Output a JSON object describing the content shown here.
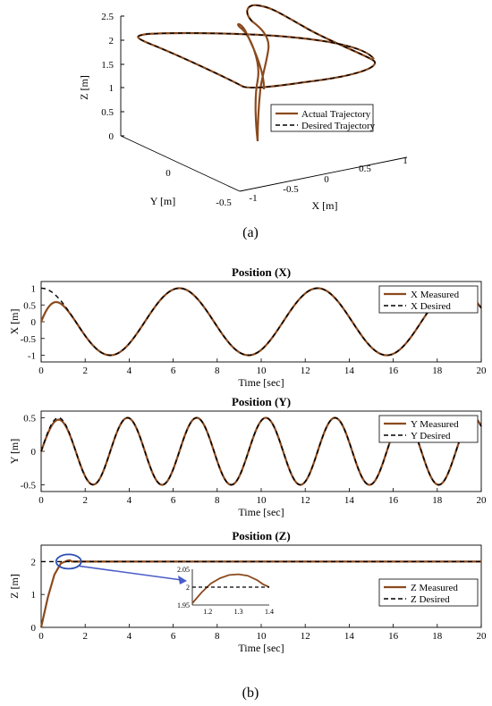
{
  "figure": {
    "caption_a": "(a)",
    "caption_b": "(b)"
  },
  "colors": {
    "measured": "#8b4a1e",
    "desired": "#000000",
    "zoom_ellipse": "#2b4db3",
    "arrow": "#4a5cc9"
  },
  "panel_a": {
    "zlabel": "Z [m]",
    "ylabel": "Y [m]",
    "xlabel": "X [m]",
    "z_ticks": [
      "2.5",
      "2",
      "1.5",
      "1",
      "0.5",
      "0"
    ],
    "y_ticks": [
      "0",
      "-0.5"
    ],
    "x_ticks": [
      "1",
      "0.5",
      "0",
      "-0.5",
      "-1"
    ],
    "legend": [
      "Actual Trajectory",
      "Desired Trajectory"
    ]
  },
  "chart_data": [
    {
      "type": "line",
      "title": "Position (X)",
      "xlabel": "Time [sec]",
      "ylabel": "X [m]",
      "xlim": [
        0,
        20
      ],
      "ylim": [
        -1.2,
        1.2
      ],
      "x_ticks": [
        "0",
        "2",
        "4",
        "6",
        "8",
        "10",
        "12",
        "14",
        "16",
        "18",
        "20"
      ],
      "y_ticks": [
        "1",
        "0.5",
        "0",
        "-0.5",
        "-1"
      ],
      "legend": [
        "X Measured",
        "X Desired"
      ],
      "legend_position": "top-right",
      "series": [
        {
          "name": "X Measured",
          "x": [
            0,
            0.3,
            0.6,
            1.0,
            1.5,
            2.0,
            3.14,
            4.71,
            6.28,
            7.85,
            9.42,
            11.0,
            12.57,
            14.14,
            15.71,
            17.28,
            18.85,
            20
          ],
          "y": [
            0,
            0.3,
            0.45,
            0.4,
            0.12,
            -0.35,
            -1,
            0,
            1,
            0,
            -1,
            0,
            1,
            0,
            -1,
            0,
            1,
            0.41
          ]
        },
        {
          "name": "X Desired",
          "x": [
            0,
            1.57,
            3.14,
            4.71,
            6.28,
            7.85,
            9.42,
            11.0,
            12.57,
            14.14,
            15.71,
            17.28,
            18.85,
            20
          ],
          "y": [
            1,
            0,
            -1,
            0,
            1,
            0,
            -1,
            0,
            1,
            0,
            -1,
            0,
            1,
            0.41
          ]
        }
      ]
    },
    {
      "type": "line",
      "title": "Position (Y)",
      "xlabel": "Time [sec]",
      "ylabel": "Y [m]",
      "xlim": [
        0,
        20
      ],
      "ylim": [
        -0.6,
        0.6
      ],
      "x_ticks": [
        "0",
        "2",
        "4",
        "6",
        "8",
        "10",
        "12",
        "14",
        "16",
        "18",
        "20"
      ],
      "y_ticks": [
        "0.5",
        "0",
        "-0.5"
      ],
      "legend": [
        "Y Measured",
        "Y Desired"
      ],
      "legend_position": "top-right",
      "series": [
        {
          "name": "Y Measured",
          "x": [
            0,
            0.79,
            1.57,
            2.36,
            3.14,
            3.93,
            4.71,
            5.5,
            6.28,
            7.07,
            7.85,
            8.64,
            9.42,
            10.21,
            11.0,
            11.78,
            12.57,
            13.35,
            14.14,
            14.92,
            15.71,
            16.49,
            17.28,
            18.06,
            18.85,
            19.63,
            20
          ],
          "y": [
            0,
            0.5,
            0,
            -0.5,
            0,
            0.5,
            0,
            -0.5,
            0,
            0.5,
            0,
            -0.5,
            0,
            0.5,
            0,
            -0.5,
            0,
            0.5,
            0,
            -0.5,
            0,
            0.5,
            0,
            -0.5,
            0,
            0.5,
            0.37
          ]
        },
        {
          "name": "Y Desired",
          "x": [
            0,
            0.79,
            1.57,
            2.36,
            3.14,
            3.93,
            4.71,
            5.5,
            6.28,
            7.07,
            7.85,
            8.64,
            9.42,
            10.21,
            11.0,
            11.78,
            12.57,
            13.35,
            14.14,
            14.92,
            15.71,
            16.49,
            17.28,
            18.06,
            18.85,
            19.63,
            20
          ],
          "y": [
            0,
            0.5,
            0,
            -0.5,
            0,
            0.5,
            0,
            -0.5,
            0,
            0.5,
            0,
            -0.5,
            0,
            0.5,
            0,
            -0.5,
            0,
            0.5,
            0,
            -0.5,
            0,
            0.5,
            0,
            -0.5,
            0,
            0.5,
            0.37
          ]
        }
      ]
    },
    {
      "type": "line",
      "title": "Position (Z)",
      "xlabel": "Time [sec]",
      "ylabel": "Z [m]",
      "xlim": [
        0,
        20
      ],
      "ylim": [
        0,
        2.5
      ],
      "x_ticks": [
        "0",
        "2",
        "4",
        "6",
        "8",
        "10",
        "12",
        "14",
        "16",
        "18",
        "20"
      ],
      "y_ticks": [
        "2",
        "1",
        "0"
      ],
      "legend": [
        "Z Measured",
        "Z Desired"
      ],
      "legend_position": "right",
      "series": [
        {
          "name": "Z Measured",
          "x": [
            0,
            0.3,
            0.6,
            0.9,
            1.1,
            1.2,
            1.3,
            1.4,
            2,
            20
          ],
          "y": [
            0,
            0.9,
            1.6,
            1.95,
            2.0,
            2.03,
            2.04,
            2.0,
            2.0,
            2.0
          ]
        },
        {
          "name": "Z Desired",
          "x": [
            0,
            20
          ],
          "y": [
            2,
            2
          ]
        }
      ],
      "inset": {
        "xlim": [
          1.15,
          1.4
        ],
        "ylim": [
          1.95,
          2.05
        ],
        "x_ticks": [
          "1.2",
          "1.3",
          "1.4"
        ],
        "y_ticks": [
          "2.05",
          "2",
          "1.95"
        ],
        "measured": {
          "x": [
            1.15,
            1.18,
            1.21,
            1.24,
            1.27,
            1.3,
            1.33,
            1.36,
            1.38,
            1.4
          ],
          "y": [
            1.955,
            1.985,
            2.01,
            2.025,
            2.034,
            2.036,
            2.032,
            2.02,
            2.008,
            2.0
          ]
        },
        "desired": {
          "x": [
            1.15,
            1.4
          ],
          "y": [
            2,
            2
          ]
        }
      }
    }
  ]
}
